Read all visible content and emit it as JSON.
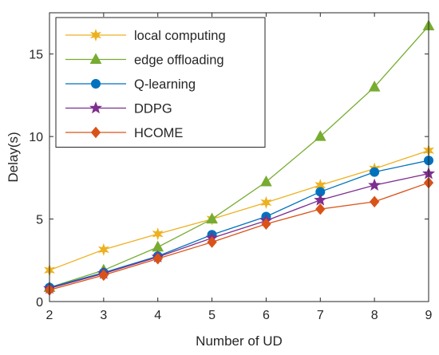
{
  "chart_data": {
    "type": "line",
    "title": "",
    "xlabel": "Number of UD",
    "ylabel": "Delay(s)",
    "x": [
      2,
      3,
      4,
      5,
      6,
      7,
      8,
      9
    ],
    "xlim": [
      2,
      9
    ],
    "ylim": [
      0,
      17.5
    ],
    "xticks": [
      "2",
      "3",
      "4",
      "5",
      "6",
      "7",
      "8",
      "9"
    ],
    "yticks": [
      "0",
      "5",
      "10",
      "15"
    ],
    "ytick_values": [
      0,
      5,
      10,
      15
    ],
    "grid": false,
    "legend_position": "top-left",
    "series": [
      {
        "name": "local computing",
        "color": "#EDB120",
        "marker": "star-6",
        "values": [
          1.9,
          3.15,
          4.1,
          5.0,
          6.0,
          7.05,
          8.05,
          9.15
        ]
      },
      {
        "name": "edge offloading",
        "color": "#77AC30",
        "marker": "triangle",
        "values": [
          0.85,
          1.9,
          3.3,
          5.0,
          7.25,
          10.0,
          13.0,
          16.7
        ]
      },
      {
        "name": "Q-learning",
        "color": "#0072BD",
        "marker": "circle",
        "values": [
          0.85,
          1.75,
          2.75,
          4.05,
          5.15,
          6.65,
          7.85,
          8.55
        ]
      },
      {
        "name": "DDPG",
        "color": "#7E2F8E",
        "marker": "star-5",
        "values": [
          0.8,
          1.7,
          2.7,
          3.85,
          4.9,
          6.15,
          7.05,
          7.75
        ]
      },
      {
        "name": "HCOME",
        "color": "#D95319",
        "marker": "diamond",
        "values": [
          0.7,
          1.6,
          2.6,
          3.6,
          4.7,
          5.6,
          6.05,
          7.2
        ]
      }
    ]
  }
}
